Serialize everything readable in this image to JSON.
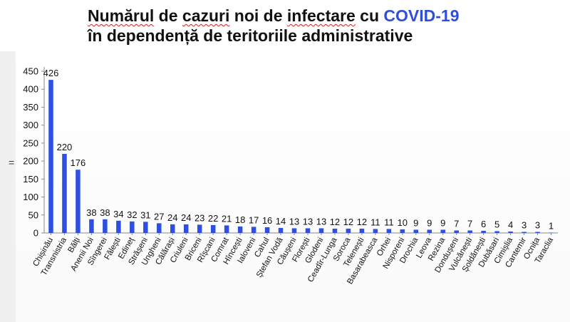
{
  "title": {
    "line1_a": "Numărul",
    "line1_b": " de ",
    "line1_c": "cazuri",
    "line1_d": " noi de ",
    "line1_e": "infectare",
    "line1_f": " cu ",
    "line1_g": "COVID-19",
    "line2": "în dependență de teritoriile administrative"
  },
  "colors": {
    "bar": "#2f4fe0",
    "accent": "#2f4fd8",
    "axis": "#888888"
  },
  "chart_data": {
    "type": "bar",
    "title": "Numărul de cazuri noi de infectare cu COVID-19 în dependență de teritoriile administrative",
    "xlabel": "",
    "ylabel": "",
    "ylim": [
      0,
      450
    ],
    "yticks": [
      0,
      50,
      100,
      150,
      200,
      250,
      300,
      350,
      400,
      450
    ],
    "grid": false,
    "categories": [
      "Chișinău",
      "Transnistria",
      "Bălți",
      "Anenii Noi",
      "Sîngerei",
      "Fălești",
      "Edineț",
      "Strășeni",
      "Ungheni",
      "Călărași",
      "Criuleni",
      "Briceni",
      "Rîșcani",
      "Comrat",
      "Hîncești",
      "Ialoveni",
      "Cahul",
      "Ștefan Vodă",
      "Căușeni",
      "Florești",
      "Glodeni",
      "Ceadîr-Lunga",
      "Soroca",
      "Telenești",
      "Basarabeasca",
      "Orhei",
      "Nisporeni",
      "Drochia",
      "Leova",
      "Rezina",
      "Dondușeni",
      "Vulcănești",
      "Șoldănești",
      "Dubăsari",
      "Cimișlia",
      "Cantemir",
      "Ocnița",
      "Taraclia"
    ],
    "values": [
      426,
      220,
      176,
      38,
      38,
      34,
      32,
      31,
      27,
      24,
      24,
      23,
      22,
      21,
      18,
      17,
      16,
      14,
      13,
      13,
      13,
      12,
      12,
      12,
      11,
      11,
      10,
      9,
      9,
      9,
      7,
      7,
      6,
      5,
      4,
      3,
      3,
      1
    ]
  }
}
